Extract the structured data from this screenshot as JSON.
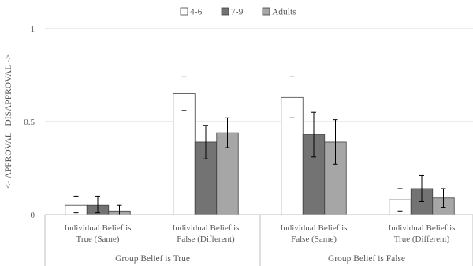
{
  "chart_data": {
    "type": "bar",
    "title": "",
    "ylabel": "<- APPROVAL | DISAPPROVAL ->",
    "ylim": [
      0,
      1
    ],
    "yticks": [
      0,
      0.5,
      1
    ],
    "ytick_labels": [
      "0",
      "0.5",
      "1"
    ],
    "legend_position": "top-center",
    "groups": [
      {
        "label": "Group Belief is True",
        "categories": [
          [
            "Individual Belief is",
            "True (Same)"
          ],
          [
            "Individual Belief is",
            "False (Different)"
          ]
        ]
      },
      {
        "label": "Group Belief is False",
        "categories": [
          [
            "Individual Belief is",
            "False (Same)"
          ],
          [
            "Individual Belief is",
            "True (Different)"
          ]
        ]
      }
    ],
    "series": [
      {
        "name": "4-6",
        "color": "#ffffff",
        "values": [
          0.05,
          0.65,
          0.63,
          0.08
        ],
        "err_low": [
          0.01,
          0.56,
          0.52,
          0.02
        ],
        "err_high": [
          0.1,
          0.74,
          0.74,
          0.14
        ]
      },
      {
        "name": "7-9",
        "color": "#737373",
        "values": [
          0.05,
          0.39,
          0.43,
          0.14
        ],
        "err_low": [
          0.01,
          0.3,
          0.31,
          0.07
        ],
        "err_high": [
          0.1,
          0.48,
          0.55,
          0.21
        ]
      },
      {
        "name": "Adults",
        "color": "#a6a6a6",
        "values": [
          0.02,
          0.44,
          0.39,
          0.09
        ],
        "err_low": [
          0.0,
          0.36,
          0.27,
          0.04
        ],
        "err_high": [
          0.05,
          0.52,
          0.51,
          0.14
        ]
      }
    ]
  }
}
